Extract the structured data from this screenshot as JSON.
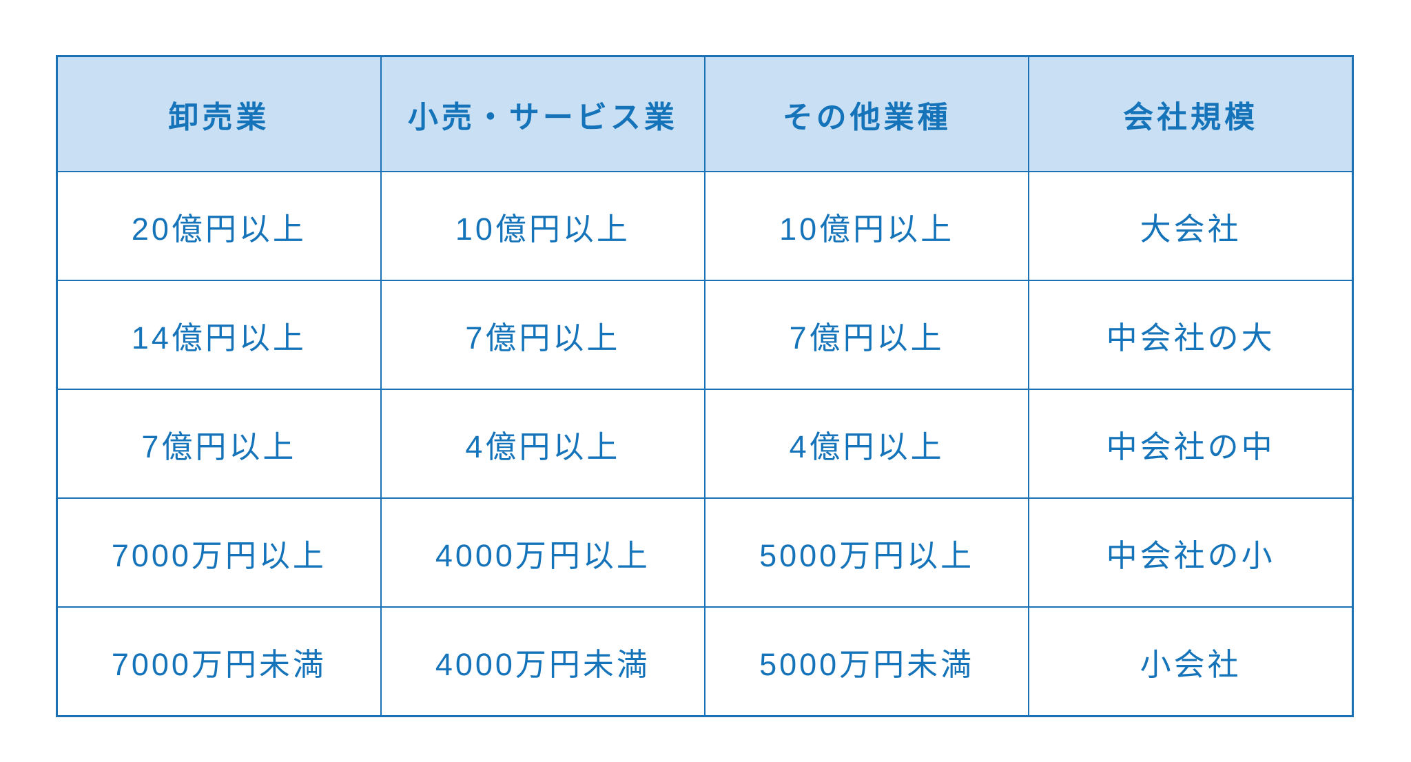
{
  "colors": {
    "header_bg": "#c9dff3",
    "text_blue": "#1573b9",
    "border_blue": "#1b71b3",
    "page_bg": "#ffffff"
  },
  "table": {
    "headers": [
      "卸売業",
      "小売・サービス業",
      "その他業種",
      "会社規模"
    ],
    "rows": [
      [
        "20億円以上",
        "10億円以上",
        "10億円以上",
        "大会社"
      ],
      [
        "14億円以上",
        "7億円以上",
        "7億円以上",
        "中会社の大"
      ],
      [
        "7億円以上",
        "4億円以上",
        "4億円以上",
        "中会社の中"
      ],
      [
        "7000万円以上",
        "4000万円以上",
        "5000万円以上",
        "中会社の小"
      ],
      [
        "7000万円未満",
        "4000万円未満",
        "5000万円未満",
        "小会社"
      ]
    ]
  },
  "chart_data": {
    "type": "table",
    "title": "",
    "columns": [
      "卸売業",
      "小売・サービス業",
      "その他業種",
      "会社規模"
    ],
    "rows": [
      {
        "卸売業": "20億円以上",
        "小売・サービス業": "10億円以上",
        "その他業種": "10億円以上",
        "会社規模": "大会社"
      },
      {
        "卸売業": "14億円以上",
        "小売・サービス業": "7億円以上",
        "その他業種": "7億円以上",
        "会社規模": "中会社の大"
      },
      {
        "卸売業": "7億円以上",
        "小売・サービス業": "4億円以上",
        "その他業種": "4億円以上",
        "会社規模": "中会社の中"
      },
      {
        "卸売業": "7000万円以上",
        "小売・サービス業": "4000万円以上",
        "その他業種": "5000万円以上",
        "会社規模": "中会社の小"
      },
      {
        "卸売業": "7000万円未満",
        "小売・サービス業": "4000万円未満",
        "その他業種": "5000万円未満",
        "会社規模": "小会社"
      }
    ]
  }
}
